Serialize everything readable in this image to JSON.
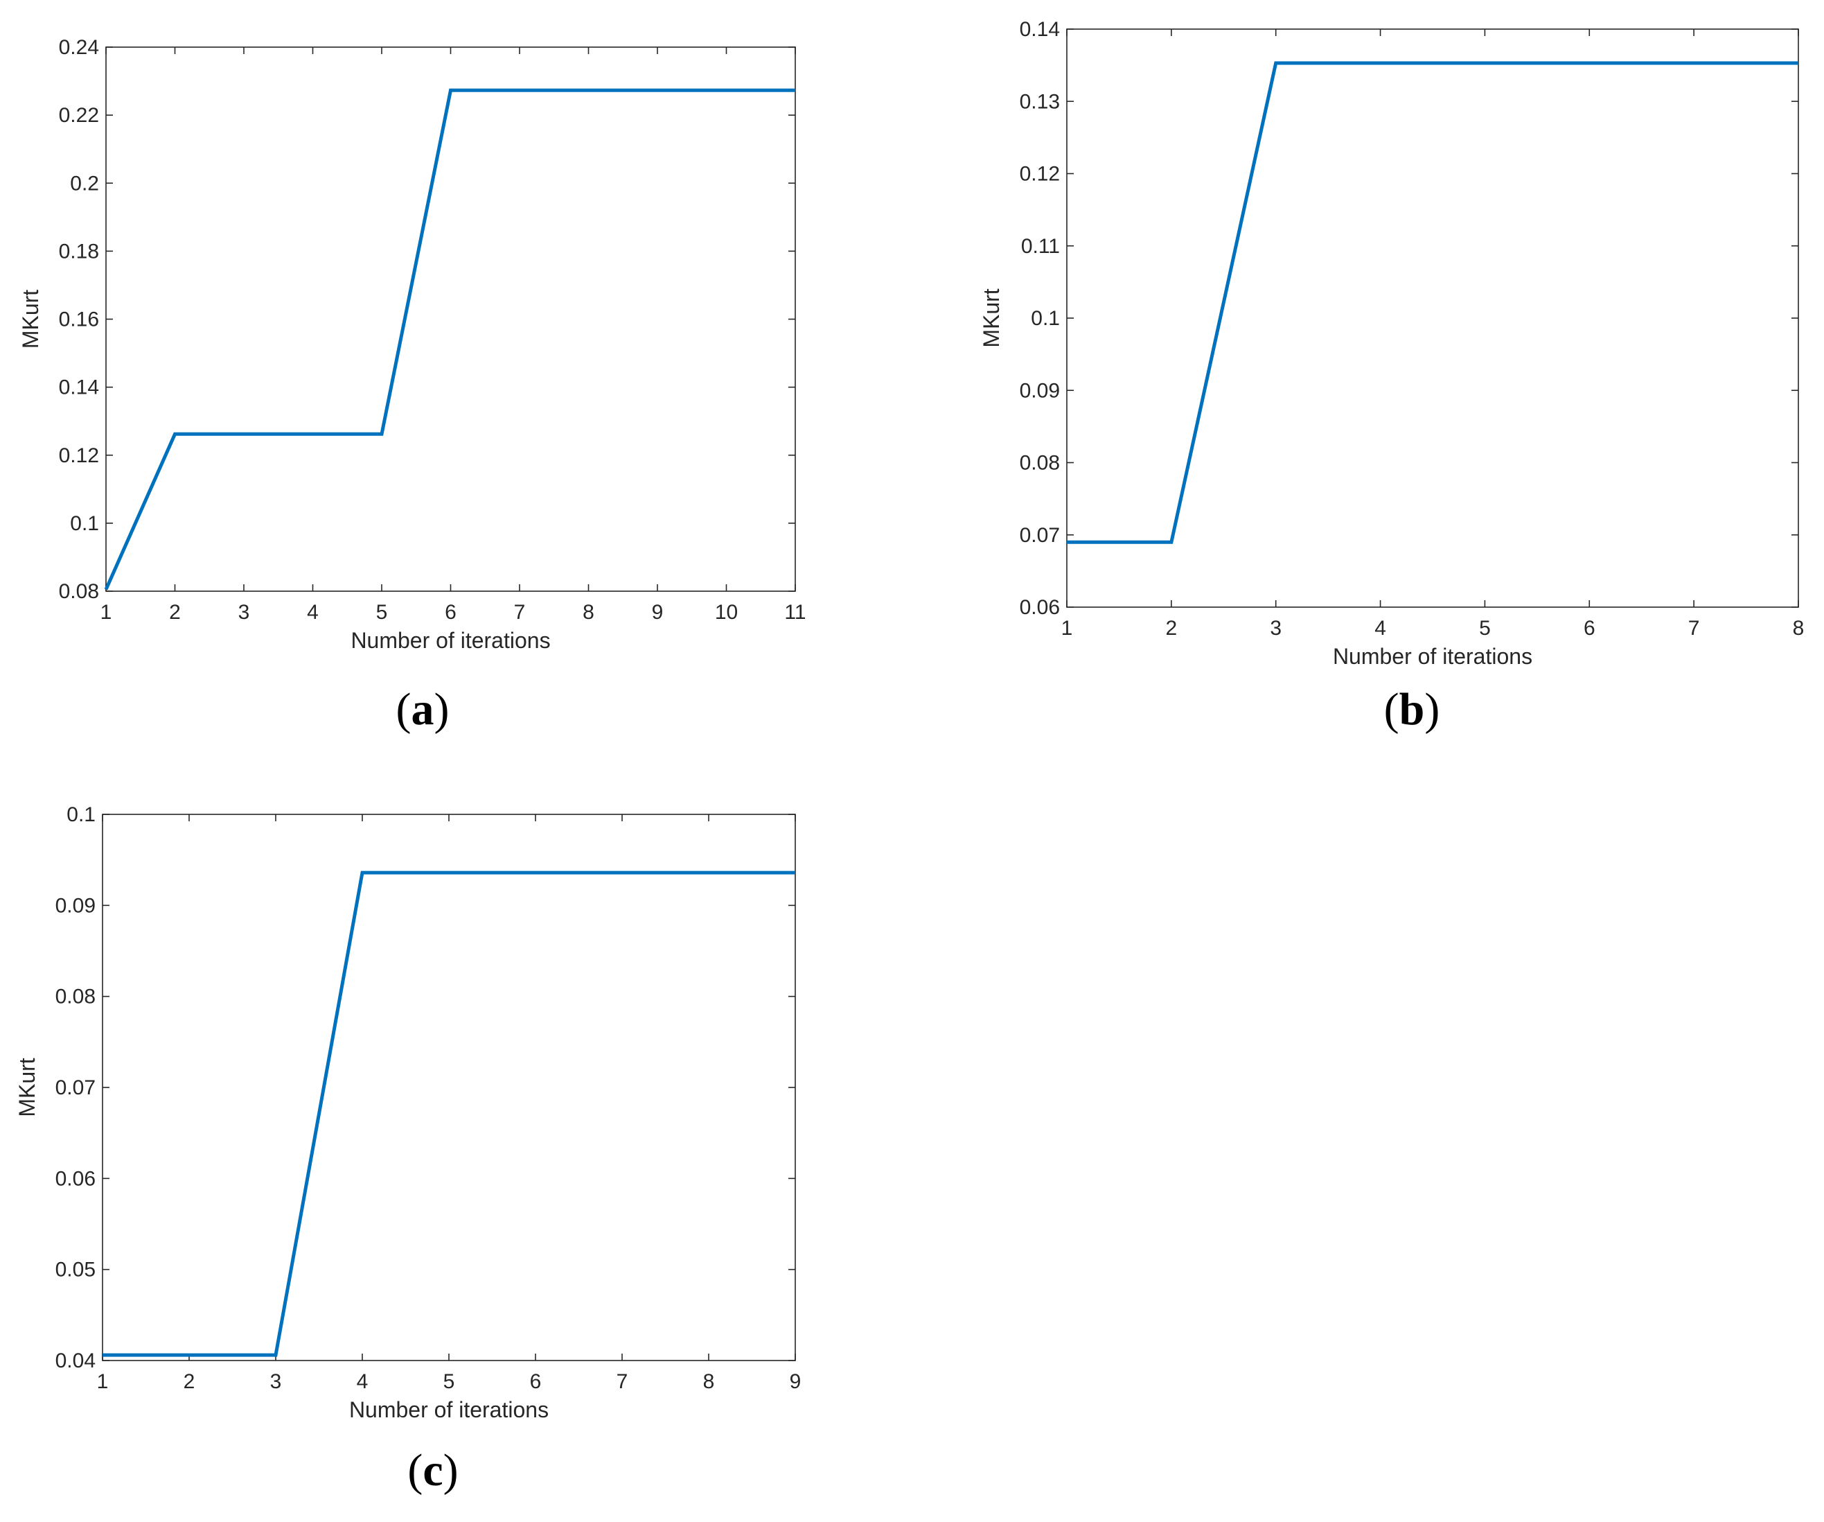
{
  "chart_data": [
    {
      "id": "a",
      "panel_label": "a",
      "type": "line",
      "xlabel": "Number of iterations",
      "ylabel": "MKurt",
      "xlim": [
        1,
        11
      ],
      "ylim": [
        0.08,
        0.24
      ],
      "xticks": [
        1,
        2,
        3,
        4,
        5,
        6,
        7,
        8,
        9,
        10,
        11
      ],
      "yticks": [
        0.08,
        0.1,
        0.12,
        0.14,
        0.16,
        0.18,
        0.2,
        0.22,
        0.24
      ],
      "ytick_labels": [
        "0.08",
        "0.1",
        "0.12",
        "0.14",
        "0.16",
        "0.18",
        "0.2",
        "0.22",
        "0.24"
      ],
      "grid": false,
      "series": [
        {
          "color": "#0072BD",
          "x": [
            1,
            2,
            3,
            4,
            5,
            6,
            7,
            8,
            9,
            10,
            11
          ],
          "y": [
            0.0805,
            0.1262,
            0.1262,
            0.1262,
            0.1262,
            0.2273,
            0.2273,
            0.2273,
            0.2273,
            0.2273,
            0.2273
          ]
        }
      ]
    },
    {
      "id": "b",
      "panel_label": "b",
      "type": "line",
      "xlabel": "Number of iterations",
      "ylabel": "MKurt",
      "xlim": [
        1,
        8
      ],
      "ylim": [
        0.06,
        0.14
      ],
      "xticks": [
        1,
        2,
        3,
        4,
        5,
        6,
        7,
        8
      ],
      "yticks": [
        0.06,
        0.07,
        0.08,
        0.09,
        0.1,
        0.11,
        0.12,
        0.13,
        0.14
      ],
      "ytick_labels": [
        "0.06",
        "0.07",
        "0.08",
        "0.09",
        "0.1",
        "0.11",
        "0.12",
        "0.13",
        "0.14"
      ],
      "grid": false,
      "series": [
        {
          "color": "#0072BD",
          "x": [
            1,
            2,
            3,
            4,
            5,
            6,
            7,
            8
          ],
          "y": [
            0.069,
            0.069,
            0.1353,
            0.1353,
            0.1353,
            0.1353,
            0.1353,
            0.1353
          ]
        }
      ]
    },
    {
      "id": "c",
      "panel_label": "c",
      "type": "line",
      "xlabel": "Number of iterations",
      "ylabel": "MKurt",
      "xlim": [
        1,
        9
      ],
      "ylim": [
        0.04,
        0.1
      ],
      "xticks": [
        1,
        2,
        3,
        4,
        5,
        6,
        7,
        8,
        9
      ],
      "yticks": [
        0.04,
        0.05,
        0.06,
        0.07,
        0.08,
        0.09,
        0.1
      ],
      "ytick_labels": [
        "0.04",
        "0.05",
        "0.06",
        "0.07",
        "0.08",
        "0.09",
        "0.1"
      ],
      "grid": false,
      "series": [
        {
          "color": "#0072BD",
          "x": [
            1,
            2,
            3,
            4,
            5,
            6,
            7,
            8,
            9
          ],
          "y": [
            0.0406,
            0.0406,
            0.0406,
            0.0936,
            0.0936,
            0.0936,
            0.0936,
            0.0936,
            0.0936
          ]
        }
      ]
    }
  ],
  "colors": {
    "axis": "#262626",
    "line": "#0072BD",
    "background": "#ffffff"
  }
}
